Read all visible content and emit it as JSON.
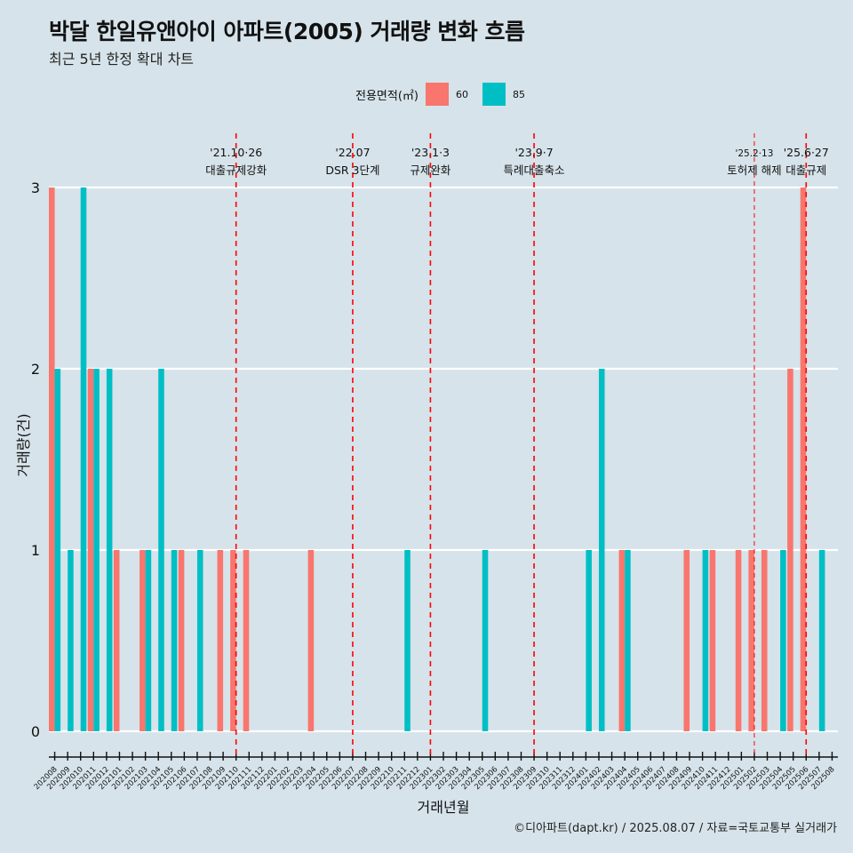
{
  "title": "박달 한일유앤아이 아파트(2005) 거래량 변화 흐름",
  "subtitle": "최근 5년 한정 확대 차트",
  "caption": "©디아파트(dapt.kr) / 2025.08.07 / 자료=국토교통부 실거래가",
  "legend": {
    "title": "전용면적(㎡)",
    "items": [
      {
        "label": "60",
        "color": "#f8766d"
      },
      {
        "label": "85",
        "color": "#00bfc4"
      }
    ]
  },
  "chart_data": {
    "type": "bar",
    "xlabel": "거래년월",
    "ylabel": "거래량(건)",
    "ylim": [
      0,
      3
    ],
    "yticks": [
      0,
      1,
      2,
      3
    ],
    "grid": true,
    "legend_position": "top",
    "categories": [
      "202008",
      "202009",
      "202010",
      "202011",
      "202012",
      "202101",
      "202102",
      "202103",
      "202104",
      "202105",
      "202106",
      "202107",
      "202108",
      "202109",
      "202110",
      "202111",
      "202112",
      "202201",
      "202202",
      "202203",
      "202204",
      "202205",
      "202206",
      "202207",
      "202208",
      "202209",
      "202210",
      "202211",
      "202212",
      "202301",
      "202302",
      "202303",
      "202304",
      "202305",
      "202306",
      "202307",
      "202308",
      "202309",
      "202310",
      "202311",
      "202312",
      "202401",
      "202402",
      "202403",
      "202404",
      "202405",
      "202406",
      "202407",
      "202408",
      "202409",
      "202410",
      "202411",
      "202412",
      "202501",
      "202502",
      "202503",
      "202504",
      "202505",
      "202506",
      "202507",
      "202508"
    ],
    "series": [
      {
        "name": "60",
        "color": "#f8766d",
        "values": [
          3,
          0,
          0,
          2,
          0,
          1,
          0,
          1,
          0,
          0,
          1,
          0,
          0,
          1,
          1,
          1,
          0,
          0,
          0,
          0,
          1,
          0,
          0,
          0,
          0,
          0,
          0,
          0,
          0,
          0,
          0,
          0,
          0,
          0,
          0,
          0,
          0,
          0,
          0,
          0,
          0,
          0,
          0,
          0,
          1,
          0,
          0,
          0,
          0,
          1,
          0,
          1,
          0,
          1,
          1,
          1,
          0,
          2,
          3,
          0,
          0
        ]
      },
      {
        "name": "85",
        "color": "#00bfc4",
        "values": [
          2,
          1,
          3,
          2,
          2,
          0,
          0,
          1,
          2,
          1,
          0,
          1,
          0,
          0,
          0,
          0,
          0,
          0,
          0,
          0,
          0,
          0,
          0,
          0,
          0,
          0,
          0,
          1,
          0,
          0,
          0,
          0,
          0,
          1,
          0,
          0,
          0,
          0,
          0,
          0,
          0,
          1,
          2,
          0,
          1,
          0,
          0,
          0,
          0,
          0,
          1,
          0,
          0,
          0,
          0,
          0,
          1,
          0,
          0,
          1,
          0
        ]
      }
    ],
    "annotations": [
      {
        "x": "202110",
        "line1": "'21.10·26",
        "line2": "대출규제강화",
        "style": "major"
      },
      {
        "x": "202207",
        "line1": "'22.07",
        "line2": "DSR 3단계",
        "style": "major"
      },
      {
        "x": "202301",
        "line1": "'23.1·3",
        "line2": "규제완화",
        "style": "major"
      },
      {
        "x": "202309",
        "line1": "'23.9·7",
        "line2": "특례대출축소",
        "style": "major"
      },
      {
        "x": "202502",
        "line1": "'25.2·13",
        "line2": "토허제 해제",
        "style": "minor"
      },
      {
        "x": "202506",
        "line1": "'25.6·27",
        "line2": "대출규제",
        "style": "major"
      }
    ]
  }
}
